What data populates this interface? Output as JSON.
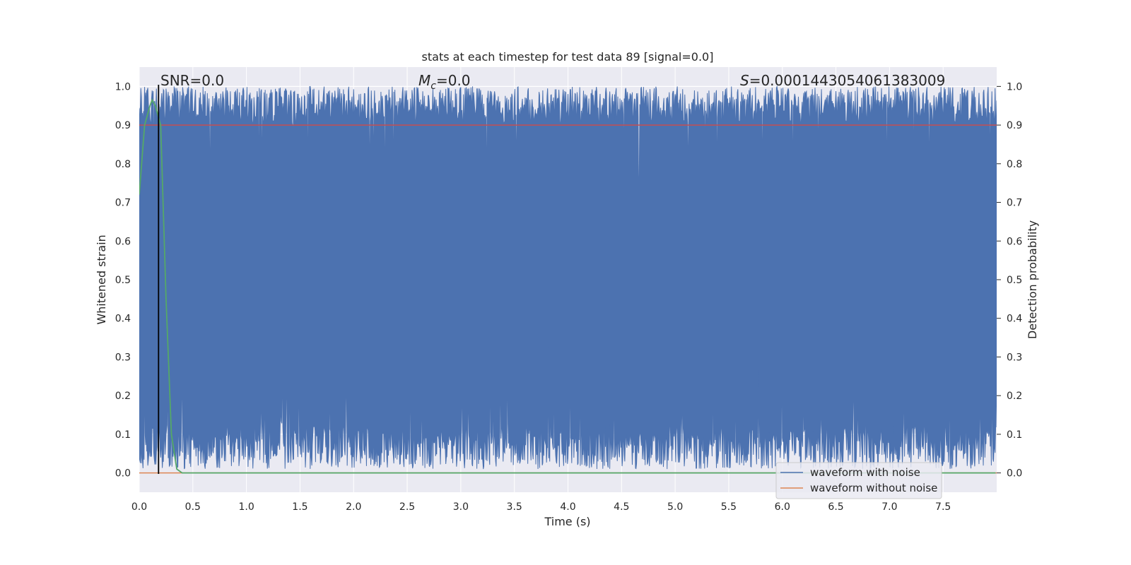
{
  "chart_data": {
    "type": "line",
    "title": "stats at each timestep for test data 89 [signal=0.0]",
    "xlabel": "Time (s)",
    "ylabel_left": "Whitened strain",
    "ylabel_right": "Detection probability",
    "xlim": [
      0.0,
      8.0
    ],
    "ylim": [
      -0.05,
      1.05
    ],
    "x_ticks": [
      "0.0",
      "0.5",
      "1.0",
      "1.5",
      "2.0",
      "2.5",
      "3.0",
      "3.5",
      "4.0",
      "4.5",
      "5.0",
      "5.5",
      "6.0",
      "6.5",
      "7.0",
      "7.5"
    ],
    "y_ticks_left": [
      "0.0",
      "0.1",
      "0.2",
      "0.3",
      "0.4",
      "0.5",
      "0.6",
      "0.7",
      "0.8",
      "0.9",
      "1.0"
    ],
    "y_ticks_right": [
      "0.0",
      "0.1",
      "0.2",
      "0.3",
      "0.4",
      "0.5",
      "0.6",
      "0.7",
      "0.8",
      "0.9",
      "1.0"
    ],
    "annotations": {
      "snr": "SNR=0.0",
      "mc_symbol": "M",
      "mc_sub": "c",
      "mc_value": "=0.0",
      "s_symbol": "S",
      "s_value": "=0.0001443054061383009"
    },
    "threshold": 0.9,
    "marker_time": 0.18,
    "noise_band": {
      "t_start": 0.0,
      "t_end": 8.0,
      "typical_low": 0.07,
      "typical_high": 0.95
    },
    "detection_probability": {
      "x": [
        0.0,
        0.05,
        0.1,
        0.12,
        0.15,
        0.2,
        0.25,
        0.3,
        0.35,
        0.4,
        1.0,
        2.0,
        3.0,
        4.0,
        5.0,
        6.0,
        7.0,
        7.99
      ],
      "y": [
        0.72,
        0.9,
        0.95,
        0.965,
        0.95,
        0.9,
        0.45,
        0.1,
        0.01,
        0.0,
        0.0,
        0.0,
        0.0,
        0.0,
        0.0,
        0.0,
        0.0,
        0.0
      ]
    },
    "legend": {
      "position": "lower-right",
      "entries": [
        {
          "label": "waveform with noise",
          "color": "#4c72b0"
        },
        {
          "label": "waveform without noise",
          "color": "#dd8452"
        }
      ]
    },
    "colors": {
      "noise": "#4c72b0",
      "clean": "#dd8452",
      "probability": "#55a868",
      "threshold": "#c44e52",
      "marker": "#000000",
      "axes_bg": "#eaeaf2",
      "grid": "#ffffff"
    }
  }
}
